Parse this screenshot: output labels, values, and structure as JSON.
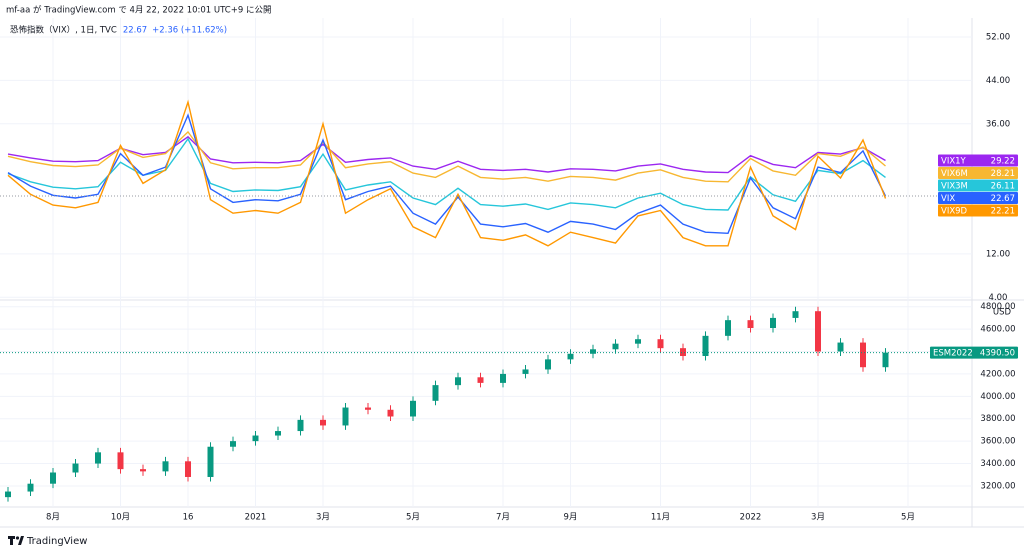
{
  "header": "mf-aa が TradingView.com で 4月 22, 2022 10:01 UTC+9 に公開",
  "footer": "TradingView",
  "chart_data": [
    {
      "type": "line",
      "title": "恐怖指数（VIX）, 1日, TVC",
      "change": "+2.36 (+11.62%)",
      "ylim": [
        3.5,
        55.5
      ],
      "yticks": [
        {
          "value": 4,
          "label": "4.00"
        },
        {
          "value": 12,
          "label": "12.00"
        },
        {
          "value": 36,
          "label": "36.00"
        },
        {
          "value": 44,
          "label": "44.00"
        },
        {
          "value": 52,
          "label": "52.00"
        }
      ],
      "grid": true,
      "series": [
        {
          "name": "VIX1Y",
          "color": "#9c27f0",
          "values": [
            30.4,
            29.7,
            29.1,
            29.0,
            29.2,
            31.5,
            30.3,
            30.7,
            33.6,
            29.5,
            28.8,
            28.9,
            28.8,
            29.2,
            32.2,
            28.9,
            29.4,
            29.7,
            28.2,
            27.6,
            29.1,
            27.6,
            27.4,
            27.6,
            27.1,
            27.7,
            27.6,
            27.3,
            28.2,
            28.6,
            27.6,
            27.1,
            27.0,
            30.1,
            28.5,
            27.9,
            30.7,
            30.4,
            31.6,
            29.22,
            null,
            null,
            null,
            null
          ]
        },
        {
          "name": "VIX6M",
          "color": "#f7b731",
          "values": [
            30.0,
            29.0,
            28.3,
            28.1,
            28.4,
            31.5,
            29.8,
            30.5,
            34.5,
            28.8,
            27.7,
            27.9,
            27.9,
            28.4,
            32.6,
            27.9,
            28.6,
            29.0,
            26.9,
            26.1,
            28.2,
            26.1,
            25.8,
            26.1,
            25.4,
            26.3,
            26.1,
            25.6,
            26.9,
            27.5,
            26.1,
            25.4,
            25.3,
            29.6,
            27.3,
            26.5,
            30.5,
            30.0,
            31.7,
            28.21,
            null,
            null,
            null,
            null
          ]
        },
        {
          "name": "VIX3M",
          "color": "#26c6da",
          "values": [
            26.8,
            25.3,
            24.3,
            24.0,
            24.4,
            28.9,
            26.5,
            27.4,
            33.2,
            25.0,
            23.5,
            23.8,
            23.7,
            24.4,
            30.4,
            23.8,
            24.7,
            25.3,
            22.3,
            21.1,
            24.1,
            21.1,
            20.8,
            21.2,
            20.2,
            21.4,
            21.1,
            20.5,
            22.3,
            23.2,
            21.1,
            20.2,
            20.1,
            26.2,
            22.9,
            21.7,
            27.4,
            26.8,
            29.2,
            26.11,
            null,
            null,
            null,
            null
          ]
        },
        {
          "name": "VIX",
          "color": "#2962ff",
          "values": [
            27.0,
            24.5,
            22.8,
            22.3,
            23.0,
            30.5,
            26.5,
            28.0,
            37.6,
            24.0,
            21.5,
            22.0,
            21.8,
            23.0,
            33.0,
            22.0,
            23.5,
            24.5,
            19.5,
            17.5,
            22.5,
            17.5,
            17.0,
            17.6,
            16.0,
            18.0,
            17.5,
            16.5,
            19.5,
            21.0,
            17.5,
            16.0,
            15.8,
            26.0,
            20.5,
            18.5,
            28.0,
            27.0,
            31.0,
            22.67,
            null,
            null,
            null,
            null
          ]
        },
        {
          "name": "VIX9D",
          "color": "#ff9800",
          "values": [
            26.5,
            23,
            21,
            20.5,
            21.5,
            32,
            25,
            27.5,
            40,
            22,
            19.5,
            20,
            19.5,
            21.5,
            36,
            19.5,
            22,
            24,
            17,
            15,
            23,
            15,
            14.5,
            15.5,
            13.5,
            16,
            15,
            14,
            19,
            20,
            15,
            13.5,
            13.5,
            28,
            19,
            16.5,
            30,
            26,
            33,
            22.21,
            null,
            null,
            null,
            null
          ]
        }
      ]
    },
    {
      "type": "candlestick",
      "name": "ESM2022",
      "currency": "USD",
      "up_color": "#089981",
      "down_color": "#f23645",
      "categories": [
        null,
        null,
        "8月",
        null,
        null,
        "10月",
        null,
        null,
        "16",
        null,
        null,
        "2021",
        null,
        null,
        "3月",
        null,
        null,
        null,
        "5月",
        null,
        null,
        null,
        "7月",
        null,
        null,
        "9月",
        null,
        null,
        null,
        "11月",
        null,
        null,
        null,
        "2022",
        null,
        null,
        "3月",
        null,
        null,
        null,
        "5月",
        null,
        null,
        null
      ],
      "ylim": [
        3012,
        4860
      ],
      "yticks": [
        {
          "value": 3200,
          "label": "3200.00"
        },
        {
          "value": 3400,
          "label": "3400.00"
        },
        {
          "value": 3600,
          "label": "3600.00"
        },
        {
          "value": 3800,
          "label": "3800.00"
        },
        {
          "value": 4000,
          "label": "4000.00"
        },
        {
          "value": 4200,
          "label": "4200.00"
        },
        {
          "value": 4400,
          "label": "4400.00"
        },
        {
          "value": 4600,
          "label": "4600.00"
        },
        {
          "value": 4800,
          "label": "4800.00"
        }
      ],
      "grid": true,
      "open": [
        3100,
        3150,
        3220,
        3320,
        3400,
        3500,
        3350,
        3330,
        3420,
        3280,
        3550,
        3600,
        3650,
        3690,
        3790,
        3740,
        3900,
        3880,
        3820,
        3960,
        4100,
        4170,
        4120,
        4200,
        4240,
        4330,
        4380,
        4420,
        4470,
        4510,
        4430,
        4360,
        4540,
        4680,
        4610,
        4700,
        4760,
        4400,
        4480,
        4260,
        null,
        null,
        null,
        null
      ],
      "high": [
        3190,
        3260,
        3360,
        3440,
        3540,
        3540,
        3390,
        3460,
        3460,
        3590,
        3640,
        3690,
        3730,
        3830,
        3830,
        3940,
        3940,
        3920,
        4000,
        4140,
        4210,
        4210,
        4240,
        4280,
        4370,
        4420,
        4460,
        4510,
        4550,
        4550,
        4470,
        4580,
        4720,
        4720,
        4740,
        4800,
        4800,
        4520,
        4520,
        4430,
        null,
        null,
        null,
        null
      ],
      "low": [
        3060,
        3110,
        3180,
        3280,
        3360,
        3310,
        3290,
        3290,
        3240,
        3240,
        3510,
        3560,
        3610,
        3650,
        3700,
        3700,
        3840,
        3780,
        3780,
        3920,
        4060,
        4080,
        4080,
        4160,
        4200,
        4290,
        4340,
        4380,
        4430,
        4390,
        4320,
        4320,
        4500,
        4570,
        4570,
        4660,
        4360,
        4360,
        4220,
        4220,
        null,
        null,
        null,
        null
      ],
      "close": [
        3150,
        3220,
        3320,
        3400,
        3500,
        3350,
        3330,
        3420,
        3280,
        3550,
        3600,
        3650,
        3690,
        3790,
        3740,
        3900,
        3880,
        3820,
        3960,
        4100,
        4170,
        4120,
        4200,
        4240,
        4330,
        4380,
        4420,
        4470,
        4510,
        4430,
        4360,
        4540,
        4680,
        4610,
        4700,
        4760,
        4400,
        4480,
        4260,
        4390.5,
        null,
        null,
        null,
        null
      ],
      "value_labels": [
        null,
        null,
        null,
        null,
        null,
        null,
        null,
        null,
        null,
        null,
        null,
        null,
        null,
        null,
        null,
        null,
        null,
        null,
        null,
        null,
        null,
        null,
        null,
        null,
        null,
        null,
        null,
        null,
        null,
        null,
        null,
        null,
        null,
        null,
        null,
        null,
        null,
        null,
        null,
        "4390.50",
        null,
        null,
        null,
        null
      ]
    }
  ]
}
